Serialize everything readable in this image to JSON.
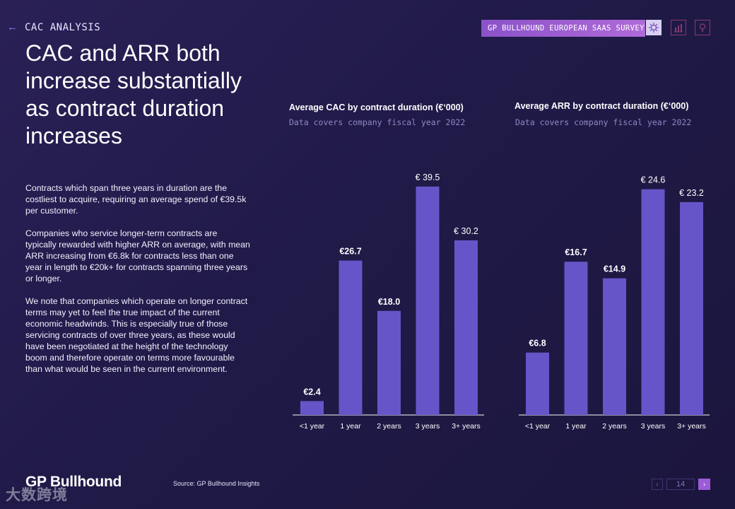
{
  "header": {
    "back_icon": "left-arrow-icon",
    "section": "CAC ANALYSIS",
    "survey_badge": "GP BULLHOUND EUROPEAN SAAS SURVEY",
    "icons": [
      "virus-icon",
      "bar-chart-icon",
      "lightbulb-icon"
    ]
  },
  "title": "CAC and ARR both increase substantially as contract duration increases",
  "paragraphs": [
    "Contracts which span three years in duration are the costliest to acquire, requiring an average spend of €39.5k per customer.",
    "Companies who service longer-term contracts are typically rewarded with higher ARR on average, with mean ARR increasing from €6.8k for contracts less than one year in length to €20k+ for contracts spanning three years or longer.",
    "We note that companies which operate on longer contract terms may yet to feel the true impact of the current economic headwinds. This is especially true of those servicing contracts of over three years, as these would have been negotiated at the height of the technology boom and therefore operate on terms more favourable than what would be seen in the current environment."
  ],
  "chart_data": [
    {
      "type": "bar",
      "title": "Average CAC by contract duration (€‘000)",
      "subtitle": "Data covers company fiscal year 2022",
      "categories": [
        "<1 year",
        "1 year",
        "2 years",
        "3 years",
        "3+ years"
      ],
      "values": [
        2.4,
        26.7,
        18.0,
        39.5,
        30.2
      ],
      "labels": [
        "€2.4",
        "€26.7",
        "€18.0",
        "€ 39.5",
        "€ 30.2"
      ],
      "ylim": [
        0,
        40
      ],
      "bar_color": "#6655c8"
    },
    {
      "type": "bar",
      "title": "Average ARR by contract duration (€‘000)",
      "subtitle": "Data covers company fiscal year 2022",
      "categories": [
        "<1 year",
        "1 year",
        "2 years",
        "3 years",
        "3+ years"
      ],
      "values": [
        6.8,
        16.7,
        14.9,
        24.6,
        23.2
      ],
      "labels": [
        "€6.8",
        "€16.7",
        "€14.9",
        "€ 24.6",
        "€ 23.2"
      ],
      "ylim": [
        0,
        40
      ],
      "bar_color": "#6655c8"
    }
  ],
  "footer": {
    "logo": "GP Bullhound",
    "source": "Source: GP Bullhound Insights",
    "watermark": "大数跨境",
    "page": "14",
    "prev_icon": "chevron-left-icon",
    "next_icon": "chevron-right-icon"
  }
}
